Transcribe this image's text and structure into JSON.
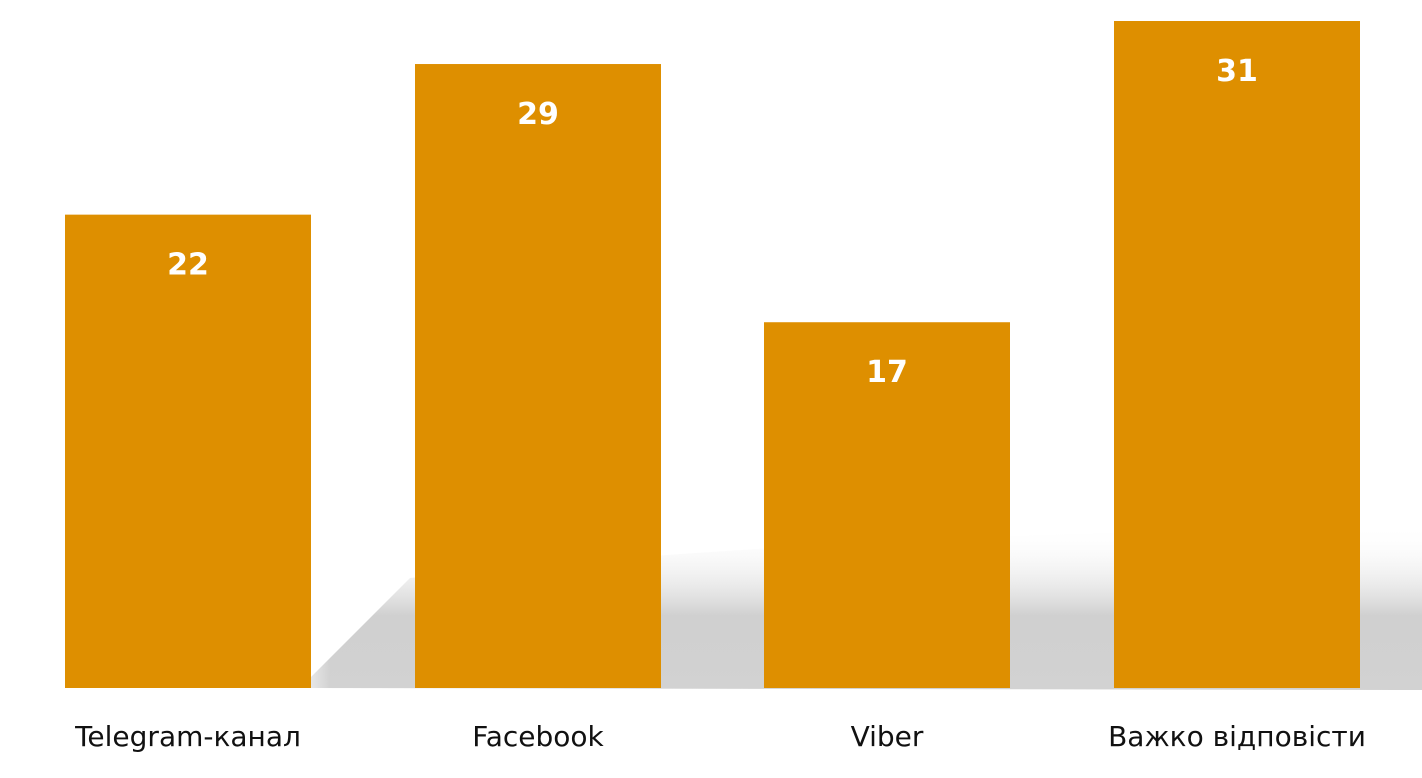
{
  "chart_data": {
    "type": "bar",
    "categories": [
      "Telegram-канал",
      "Facebook",
      "Viber",
      "Важко відповісти"
    ],
    "values": [
      22,
      29,
      17,
      31
    ],
    "title": "",
    "xlabel": "",
    "ylabel": "",
    "ylim": [
      0,
      31
    ],
    "grid": false,
    "data_labels": true,
    "bar_color": "#DE8F00",
    "label_color": "#FFFFFF",
    "shadow_color": "#C8C8C8"
  }
}
